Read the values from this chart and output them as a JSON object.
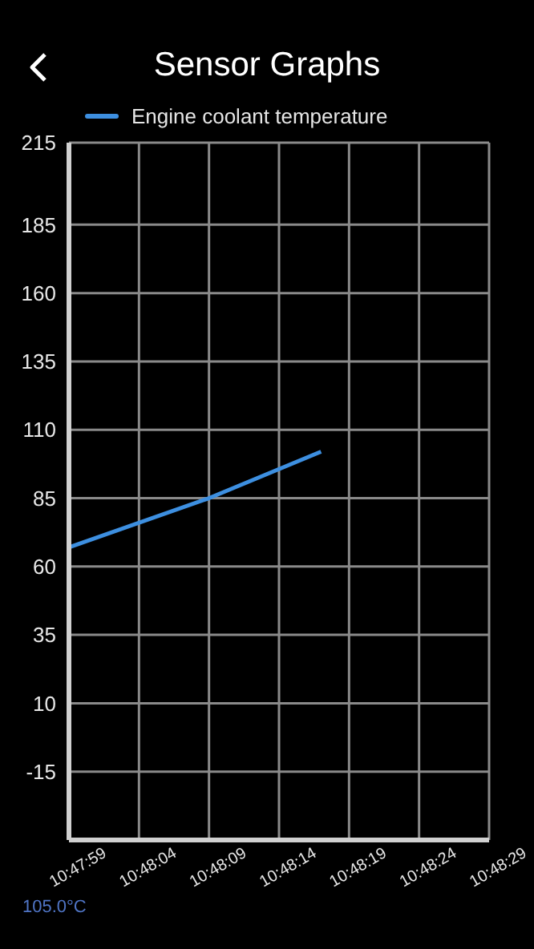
{
  "chart_data": {
    "type": "line",
    "title": "Sensor Graphs",
    "x": [
      10.799722,
      10.8025,
      10.804722
    ],
    "series": [
      {
        "name": "Engine coolant temperature",
        "color": "#3d8fe0",
        "values": [
          67,
          85,
          102
        ]
      }
    ],
    "xlim": [
      10.799722,
      10.808056
    ],
    "xticks": [
      {
        "value": 10.799722,
        "label": "10:47:59"
      },
      {
        "value": 10.801111,
        "label": "10:48:04"
      },
      {
        "value": 10.8025,
        "label": "10:48:09"
      },
      {
        "value": 10.803889,
        "label": "10:48:14"
      },
      {
        "value": 10.805278,
        "label": "10:48:19"
      },
      {
        "value": 10.806667,
        "label": "10:48:24"
      },
      {
        "value": 10.808056,
        "label": "10:48:29"
      }
    ],
    "ylim": [
      -40,
      215
    ],
    "yticks": [
      -15,
      10,
      35,
      60,
      85,
      110,
      135,
      160,
      185,
      215
    ],
    "grid": true,
    "legend": "top",
    "marker": "none",
    "line_style": "solid",
    "annotations": [
      "105.0°C"
    ]
  }
}
